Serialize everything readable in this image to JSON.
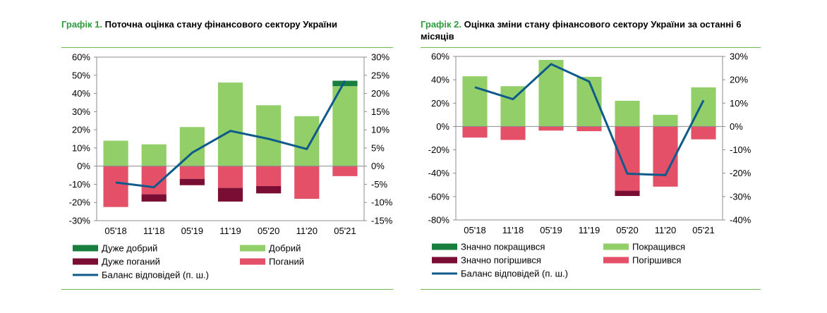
{
  "chart_data": [
    {
      "type": "bar",
      "title_label": "Графік 1.",
      "title": "Поточна оцінка стану фінансового сектору України",
      "categories": [
        "05'18",
        "11'18",
        "05'19",
        "11'19",
        "05'20",
        "11'20",
        "05'21"
      ],
      "series": [
        {
          "name": "Дуже добрий",
          "values": [
            0,
            0,
            0,
            0,
            0,
            0,
            3
          ],
          "color": "#187e3e",
          "axis": "left"
        },
        {
          "name": "Добрий",
          "values": [
            14,
            12,
            21.5,
            46,
            33.5,
            27.5,
            44
          ],
          "color": "#93cf69",
          "axis": "left"
        },
        {
          "name": "Дуже поганий",
          "values": [
            0,
            -4,
            -3.5,
            -7.5,
            -4,
            0,
            0
          ],
          "color": "#7a0d33",
          "axis": "left"
        },
        {
          "name": "Поганий",
          "values": [
            -22.5,
            -15.5,
            -7,
            -12,
            -11,
            -18,
            -5.5
          ],
          "color": "#e55069",
          "axis": "left"
        },
        {
          "name": "Баланс відповідей (п. ш.)",
          "type": "line",
          "values": [
            -4.5,
            -5.8,
            3.7,
            9.7,
            7.5,
            4.7,
            23.5
          ],
          "color": "#0d5a8b",
          "axis": "right"
        }
      ],
      "y_left": {
        "ylim": [
          -30,
          60
        ],
        "ticks": [
          "60%",
          "50%",
          "40%",
          "30%",
          "20%",
          "10%",
          "0%",
          "-10%",
          "-20%",
          "-30%"
        ]
      },
      "y_right": {
        "ylim": [
          -15,
          30
        ],
        "ticks": [
          "30%",
          "25%",
          "20%",
          "15%",
          "10%",
          "5%",
          "0%",
          "-5%",
          "-10%",
          "-15%"
        ]
      },
      "grid": false,
      "legend_position": "bottom"
    },
    {
      "type": "bar",
      "title_label": "Графік 2.",
      "title": "Оцінка зміни стану фінансового сектору України за останні 6 місяців",
      "categories": [
        "05'18",
        "11'18",
        "05'19",
        "11'19",
        "05'20",
        "11'20",
        "05'21"
      ],
      "series": [
        {
          "name": "Значно покращився",
          "values": [
            0,
            0,
            0,
            0,
            0,
            0,
            0
          ],
          "color": "#187e3e",
          "axis": "left"
        },
        {
          "name": "Покращився",
          "values": [
            43,
            34.5,
            57,
            42.5,
            22,
            10,
            33.5
          ],
          "color": "#93cf69",
          "axis": "left"
        },
        {
          "name": "Значно погіршився",
          "values": [
            0,
            0,
            0,
            0,
            -4.5,
            0,
            0
          ],
          "color": "#7a0d33",
          "axis": "left"
        },
        {
          "name": "Погіршився",
          "values": [
            -9.5,
            -11.5,
            -3.5,
            -4,
            -55,
            -51.5,
            -11
          ],
          "color": "#e55069",
          "axis": "left"
        },
        {
          "name": "Баланс відповідей (п. ш.)",
          "type": "line",
          "values": [
            16.8,
            11.7,
            26.7,
            19.2,
            -20.2,
            -20.8,
            11.2
          ],
          "color": "#0d5a8b",
          "axis": "right"
        }
      ],
      "y_left": {
        "ylim": [
          -80,
          60
        ],
        "ticks": [
          "60%",
          "40%",
          "20%",
          "0%",
          "-20%",
          "-40%",
          "-60%",
          "-80%"
        ]
      },
      "y_right": {
        "ylim": [
          -40,
          30
        ],
        "ticks": [
          "30%",
          "20%",
          "10%",
          "0%",
          "-10%",
          "-20%",
          "-30%",
          "-40%"
        ]
      },
      "grid": false,
      "legend_position": "bottom"
    }
  ]
}
